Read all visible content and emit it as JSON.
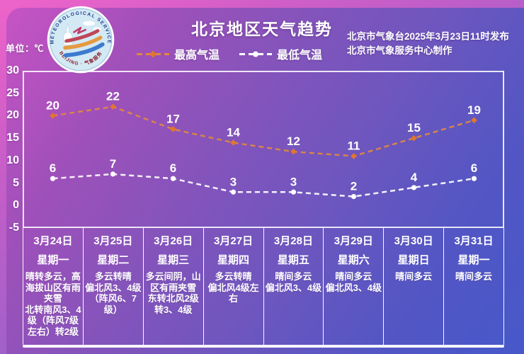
{
  "title": "北京地区天气趋势",
  "unit_label": "单位：℃",
  "publisher": {
    "line1": "北京市气象台2025年3月23日11时发布",
    "line2": "北京市气象服务中心制作"
  },
  "logo": {
    "arc_top": "METEOROLOGICAL SERVICE",
    "arc_bottom": "BEIJING · 气象服务"
  },
  "colors": {
    "max_line": "#e0893f",
    "max_marker": "#e2762c",
    "min_line": "#ffffff",
    "min_marker": "#ffffff",
    "text": "#ffffff"
  },
  "chart_data": {
    "type": "line",
    "title": "北京地区天气趋势",
    "ylabel": "℃",
    "ylim": [
      -5,
      30
    ],
    "yticks": [
      30,
      25,
      20,
      15,
      10,
      5,
      0,
      -5
    ],
    "grid": false,
    "legend_position": "top",
    "categories": [
      "3月24日",
      "3月25日",
      "3月26日",
      "3月27日",
      "3月28日",
      "3月29日",
      "3月30日",
      "3月31日"
    ],
    "series": [
      {
        "name": "最高气温",
        "color": "#e0893f",
        "marker_color": "#e2762c",
        "marker": "diamond",
        "values": [
          20,
          22,
          17,
          14,
          12,
          11,
          15,
          19
        ]
      },
      {
        "name": "最低气温",
        "color": "#ffffff",
        "marker_color": "#ffffff",
        "marker": "circle",
        "values": [
          6,
          7,
          6,
          3,
          3,
          2,
          4,
          6
        ]
      }
    ]
  },
  "days": [
    {
      "date": "3月24日",
      "weekday": "星期一",
      "condition": "晴转多云，高海拔山区有雨夹雪",
      "wind": "北转南风3、4级（阵风7级左右）转2级"
    },
    {
      "date": "3月25日",
      "weekday": "星期二",
      "condition": "多云转晴",
      "wind": "偏北风3、4级（阵风6、7级）"
    },
    {
      "date": "3月26日",
      "weekday": "星期三",
      "condition": "多云间阴，山区有雨夹雪",
      "wind": "东转北风2级转3、4级"
    },
    {
      "date": "3月27日",
      "weekday": "星期四",
      "condition": "多云转晴",
      "wind": "偏北风4级左右"
    },
    {
      "date": "3月28日",
      "weekday": "星期五",
      "condition": "晴间多云",
      "wind": "偏北风3、4级"
    },
    {
      "date": "3月29日",
      "weekday": "星期六",
      "condition": "晴间多云",
      "wind": "偏北风3、4级"
    },
    {
      "date": "3月30日",
      "weekday": "星期日",
      "condition": "晴间多云",
      "wind": ""
    },
    {
      "date": "3月31日",
      "weekday": "星期一",
      "condition": "晴间多云",
      "wind": ""
    }
  ]
}
